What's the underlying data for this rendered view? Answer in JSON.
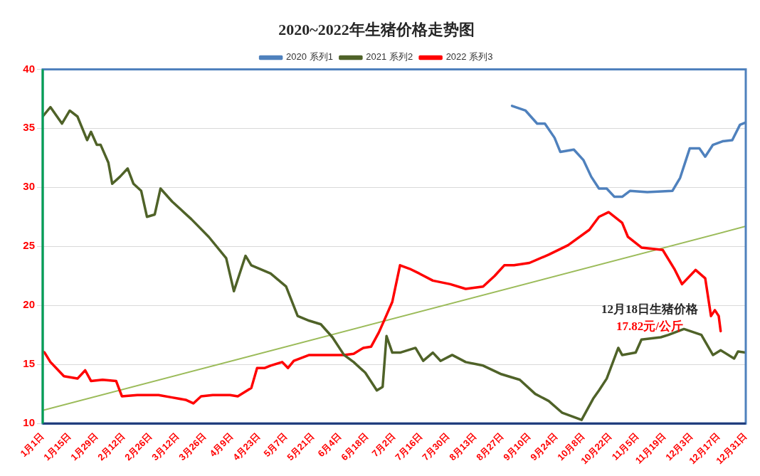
{
  "chart_data": {
    "type": "line",
    "title": "2020~2022年生猪价格走势图",
    "xlim": [
      "--01-01",
      "--12-31"
    ],
    "xticks": [
      {
        "value": "--01-01",
        "label": "1月1日"
      },
      {
        "value": "--01-15",
        "label": "1月15日"
      },
      {
        "value": "--01-29",
        "label": "1月29日"
      },
      {
        "value": "--02-12",
        "label": "2月12日"
      },
      {
        "value": "--02-26",
        "label": "2月26日"
      },
      {
        "value": "--03-12",
        "label": "3月12日"
      },
      {
        "value": "--03-26",
        "label": "3月26日"
      },
      {
        "value": "--04-09",
        "label": "4月9日"
      },
      {
        "value": "--04-23",
        "label": "4月23日"
      },
      {
        "value": "--05-07",
        "label": "5月7日"
      },
      {
        "value": "--05-21",
        "label": "5月21日"
      },
      {
        "value": "--06-04",
        "label": "6月4日"
      },
      {
        "value": "--06-18",
        "label": "6月18日"
      },
      {
        "value": "--07-02",
        "label": "7月2日"
      },
      {
        "value": "--07-16",
        "label": "7月16日"
      },
      {
        "value": "--07-30",
        "label": "7月30日"
      },
      {
        "value": "--08-13",
        "label": "8月13日"
      },
      {
        "value": "--08-27",
        "label": "8月27日"
      },
      {
        "value": "--09-10",
        "label": "9月10日"
      },
      {
        "value": "--09-24",
        "label": "9月24日"
      },
      {
        "value": "--10-08",
        "label": "10月8日"
      },
      {
        "value": "--10-22",
        "label": "10月22日"
      },
      {
        "value": "--11-05",
        "label": "11月5日"
      },
      {
        "value": "--11-19",
        "label": "11月19日"
      },
      {
        "value": "--12-03",
        "label": "12月3日"
      },
      {
        "value": "--12-17",
        "label": "12月17日"
      },
      {
        "value": "--12-31",
        "label": "12月31日"
      }
    ],
    "ylim": [
      10,
      40
    ],
    "yticks": [
      10,
      15,
      20,
      25,
      30,
      35,
      40
    ],
    "grid": "y",
    "legend": "top",
    "marker": "none",
    "line_style": "solid",
    "series": [
      {
        "name": "2020 系列1",
        "color": "#4f81bd",
        "x": [
          "--09-01",
          "--09-08",
          "--09-14",
          "--09-18",
          "--09-23",
          "--09-26",
          "--10-03",
          "--10-08",
          "--10-12",
          "--10-16",
          "--10-20",
          "--10-24",
          "--10-28",
          "--11-01",
          "--11-10",
          "--11-23",
          "--11-27",
          "--11-30",
          "--12-02",
          "--12-07",
          "--12-10",
          "--12-14",
          "--12-19",
          "--12-24",
          "--12-28",
          "--12-31"
        ],
        "values": [
          36.9,
          36.5,
          35.4,
          35.4,
          34.2,
          33.0,
          33.2,
          32.3,
          30.9,
          29.9,
          29.9,
          29.2,
          29.2,
          29.7,
          29.6,
          29.7,
          30.8,
          32.3,
          33.3,
          33.3,
          32.6,
          33.6,
          33.9,
          34.0,
          35.3,
          35.5
        ]
      },
      {
        "name": "2021 系列2",
        "color": "#4f6228",
        "x": [
          "--01-01",
          "--01-05",
          "--01-11",
          "--01-15",
          "--01-19",
          "--01-24",
          "--01-26",
          "--01-29",
          "--01-31",
          "--02-04",
          "--02-06",
          "--02-10",
          "--02-14",
          "--02-17",
          "--02-21",
          "--02-24",
          "--02-28",
          "--03-03",
          "--03-09",
          "--03-19",
          "--03-28",
          "--04-06",
          "--04-10",
          "--04-16",
          "--04-19",
          "--04-29",
          "--05-07",
          "--05-13",
          "--05-19",
          "--05-25",
          "--05-31",
          "--06-06",
          "--06-11",
          "--06-17",
          "--06-23",
          "--06-26",
          "--06-28",
          "--07-01",
          "--07-05",
          "--07-13",
          "--07-17",
          "--07-22",
          "--07-26",
          "--08-01",
          "--08-08",
          "--08-17",
          "--08-26",
          "--09-05",
          "--09-13",
          "--09-20",
          "--09-27",
          "--10-07",
          "--10-13",
          "--10-16",
          "--10-20",
          "--10-26",
          "--10-28",
          "--11-04",
          "--11-07",
          "--11-17",
          "--11-21",
          "--11-29",
          "--12-08",
          "--12-14",
          "--12-18",
          "--12-25",
          "--12-27",
          "--12-31"
        ],
        "values": [
          36.0,
          36.8,
          35.4,
          36.5,
          36.0,
          34.0,
          34.7,
          33.6,
          33.6,
          32.1,
          30.3,
          30.9,
          31.6,
          30.3,
          29.7,
          27.5,
          27.7,
          29.9,
          28.8,
          27.3,
          25.8,
          24.0,
          21.2,
          24.2,
          23.4,
          22.7,
          21.6,
          19.1,
          18.7,
          18.4,
          17.3,
          15.8,
          15.2,
          14.3,
          12.8,
          13.1,
          17.4,
          16.0,
          16.0,
          16.4,
          15.3,
          16.0,
          15.3,
          15.8,
          15.2,
          14.9,
          14.2,
          13.7,
          12.5,
          11.9,
          10.9,
          10.3,
          12.1,
          12.8,
          13.8,
          16.4,
          15.8,
          16.0,
          17.1,
          17.3,
          17.5,
          18.0,
          17.5,
          15.8,
          16.2,
          15.5,
          16.1,
          16.0
        ]
      },
      {
        "name": "2022 系列3",
        "color": "#ff0000",
        "x": [
          "--01-01",
          "--01-02",
          "--01-05",
          "--01-12",
          "--01-19",
          "--01-23",
          "--01-26",
          "--02-01",
          "--02-08",
          "--02-11",
          "--02-19",
          "--03-02",
          "--03-09",
          "--03-16",
          "--03-20",
          "--03-24",
          "--03-30",
          "--04-08",
          "--04-12",
          "--04-19",
          "--04-22",
          "--04-26",
          "--04-29",
          "--05-05",
          "--05-08",
          "--05-11",
          "--05-19",
          "--05-28",
          "--06-06",
          "--06-11",
          "--06-16",
          "--06-20",
          "--06-24",
          "--06-27",
          "--07-01",
          "--07-05",
          "--07-10",
          "--07-15",
          "--07-22",
          "--07-31",
          "--08-08",
          "--08-17",
          "--08-23",
          "--08-28",
          "--09-02",
          "--09-10",
          "--09-20",
          "--09-30",
          "--10-11",
          "--10-16",
          "--10-21",
          "--10-28",
          "--10-31",
          "--11-07",
          "--11-18",
          "--11-24",
          "--11-28",
          "--12-05",
          "--12-10",
          "--12-13",
          "--12-15",
          "--12-17",
          "--12-18"
        ],
        "values": [
          16.1,
          16.0,
          15.2,
          14.0,
          13.8,
          14.5,
          13.6,
          13.7,
          13.6,
          12.3,
          12.4,
          12.4,
          12.2,
          12.0,
          11.7,
          12.3,
          12.4,
          12.4,
          12.3,
          13.0,
          14.7,
          14.7,
          14.9,
          15.2,
          14.7,
          15.3,
          15.8,
          15.8,
          15.8,
          15.9,
          16.4,
          16.5,
          17.7,
          18.8,
          20.3,
          23.4,
          23.1,
          22.7,
          22.1,
          21.8,
          21.4,
          21.6,
          22.5,
          23.4,
          23.4,
          23.6,
          24.3,
          25.1,
          26.4,
          27.5,
          27.9,
          27.0,
          25.8,
          24.9,
          24.7,
          23.1,
          21.8,
          23.0,
          22.3,
          19.1,
          19.6,
          19.1,
          17.82
        ]
      },
      {
        "type": "line",
        "color": "#9bbb59",
        "x": [
          "--01-01",
          "--12-31"
        ],
        "values": [
          11.1,
          26.7
        ]
      }
    ],
    "annotations": [
      "12月18日生猪价格",
      "17.82元/公斤"
    ]
  }
}
